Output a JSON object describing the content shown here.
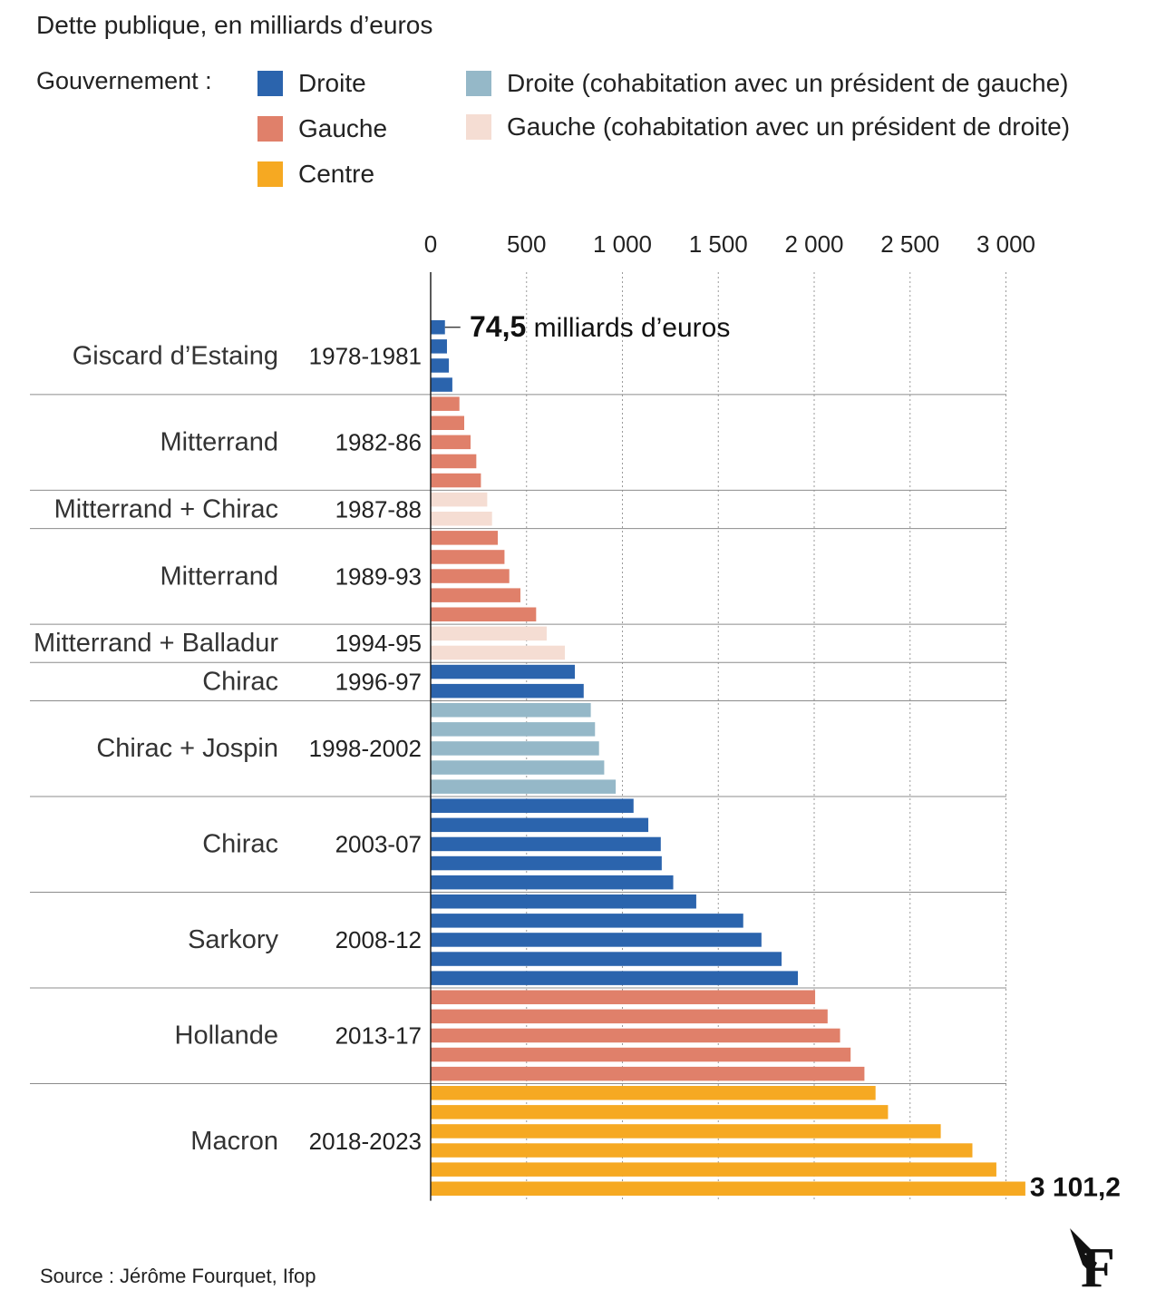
{
  "title": "Dette publique, en milliards d’euros",
  "legend": {
    "heading": "Gouvernement :",
    "items": [
      {
        "key": "droite",
        "label": "Droite",
        "color": "#2b64ad"
      },
      {
        "key": "gauche",
        "label": "Gauche",
        "color": "#e0806a"
      },
      {
        "key": "centre",
        "label": "Centre",
        "color": "#f6a922"
      },
      {
        "key": "droite_cohab",
        "label": "Droite (cohabitation avec un président de gauche)",
        "color": "#95b8c8"
      },
      {
        "key": "gauche_cohab",
        "label": "Gauche (cohabitation avec un président de droite)",
        "color": "#f5ddd3"
      }
    ]
  },
  "chart_data": {
    "type": "bar",
    "orientation": "horizontal",
    "xlim": [
      0,
      3000
    ],
    "xticks": [
      0,
      500,
      1000,
      1500,
      2000,
      2500,
      3000
    ],
    "xtick_labels": [
      "0",
      "500",
      "1 000",
      "1 500",
      "2 000",
      "2 500",
      "3 000"
    ],
    "grid": "vertical dotted",
    "groups": [
      {
        "president": "Giscard d’Estaing",
        "period": "1978-1981",
        "category": "droite",
        "values": [
          74.5,
          85,
          95,
          113
        ]
      },
      {
        "president": "Mitterrand",
        "period": "1982-86",
        "category": "gauche",
        "values": [
          150,
          175,
          208,
          238,
          262
        ]
      },
      {
        "president": "Mitterrand + Chirac",
        "period": "1987-88",
        "category": "gauche_cohab",
        "values": [
          295,
          320
        ]
      },
      {
        "president": "Mitterrand",
        "period": "1989-93",
        "category": "gauche",
        "values": [
          350,
          385,
          410,
          468,
          550
        ]
      },
      {
        "president": "Mitterrand + Balladur",
        "period": "1994-95",
        "category": "gauche_cohab",
        "values": [
          605,
          700
        ]
      },
      {
        "president": "Chirac",
        "period": "1996-97",
        "category": "droite",
        "values": [
          752,
          798
        ]
      },
      {
        "president": "Chirac + Jospin",
        "period": "1998-2002",
        "category": "droite_cohab",
        "values": [
          835,
          857,
          878,
          905,
          965
        ]
      },
      {
        "president": "Chirac",
        "period": "2003-07",
        "category": "droite",
        "values": [
          1058,
          1135,
          1200,
          1205,
          1265
        ]
      },
      {
        "president": "Sarkory",
        "period": "2008-12",
        "category": "droite",
        "values": [
          1385,
          1630,
          1725,
          1830,
          1915
        ]
      },
      {
        "president": "Hollande",
        "period": "2013-17",
        "category": "gauche",
        "values": [
          2005,
          2070,
          2135,
          2190,
          2262
        ]
      },
      {
        "president": "Macron",
        "period": "2018-2023",
        "category": "centre",
        "values": [
          2320,
          2385,
          2660,
          2825,
          2950,
          3101.2
        ]
      }
    ],
    "annotations": [
      {
        "bold": "74,5",
        "text": "milliards d’euros"
      },
      {
        "bold": "3 101,2",
        "text": ""
      }
    ]
  },
  "source": "Source : Jérôme Fourquet, Ifop",
  "logo_letter": "F"
}
